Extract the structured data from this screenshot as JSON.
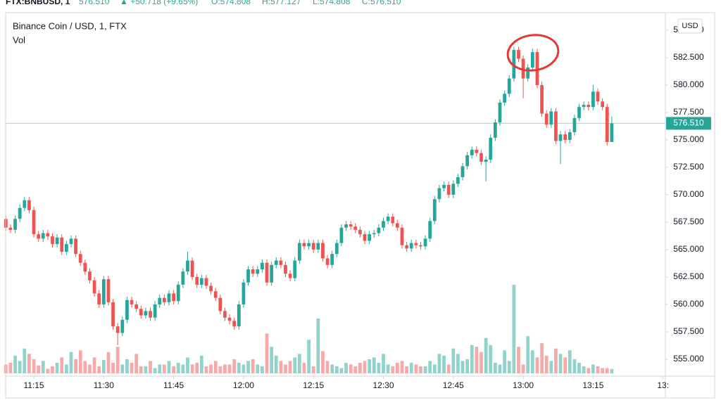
{
  "chart_data": {
    "type": "candlestick",
    "header": {
      "symbol": "FTX:BNBUSD, 1",
      "price": "576.510",
      "change": "▲ +50.718 (+9.65%)",
      "open": "O:574.808",
      "high": "H:577.127",
      "low": "L:574.808",
      "close": "C:576.510"
    },
    "title": "Binance Coin / USD, 1, FTX",
    "volume_label": "Vol",
    "currency": "USD",
    "last_price": {
      "value": 576.51,
      "label": "576.510"
    },
    "up_color": "#26a69a",
    "down_color": "#ef5350",
    "xlim": [
      -0.5,
      141.5
    ],
    "xticks": [
      {
        "value": 6,
        "label": "11:15"
      },
      {
        "value": 21,
        "label": "11:30"
      },
      {
        "value": 36,
        "label": "11:45"
      },
      {
        "value": 51,
        "label": "12:00"
      },
      {
        "value": 66,
        "label": "12:15"
      },
      {
        "value": 81,
        "label": "12:30"
      },
      {
        "value": 96,
        "label": "12:45"
      },
      {
        "value": 111,
        "label": "13:00"
      },
      {
        "value": 126,
        "label": "13:15"
      },
      {
        "value": 141,
        "label": "13:"
      }
    ],
    "ylim": [
      553.46,
      586.6
    ],
    "yticks": [
      {
        "value": 555,
        "label": "555.000"
      },
      {
        "value": 557.5,
        "label": "557.500"
      },
      {
        "value": 560,
        "label": "560.000"
      },
      {
        "value": 562.5,
        "label": "562.500"
      },
      {
        "value": 565,
        "label": "565.000"
      },
      {
        "value": 567.5,
        "label": "567.500"
      },
      {
        "value": 570,
        "label": "570.000"
      },
      {
        "value": 572.5,
        "label": "572.500"
      },
      {
        "value": 575,
        "label": "575.000"
      },
      {
        "value": 577.5,
        "label": "577.500"
      },
      {
        "value": 580,
        "label": "580.000"
      },
      {
        "value": 582.5,
        "label": "582.500"
      },
      {
        "value": 585,
        "label": "585.000"
      }
    ],
    "y2lim": [
      0,
      100
    ],
    "open": [
      567.8,
      567.0,
      566.8,
      567.8,
      568.8,
      569.5,
      568.6,
      566.4,
      566.0,
      566.5,
      566.2,
      565.5,
      566.1,
      564.8,
      565.5,
      566.0,
      564.6,
      563.8,
      563.0,
      562.2,
      561.0,
      560.0,
      562.3,
      560.2,
      558.0,
      557.4,
      558.6,
      560.4,
      560.0,
      559.6,
      559.0,
      559.4,
      558.8,
      560.0,
      560.6,
      560.2,
      561.0,
      560.3,
      561.8,
      563.0,
      564.0,
      562.5,
      561.8,
      562.4,
      561.7,
      561.2,
      560.6,
      559.4,
      558.8,
      558.5,
      558.0,
      560.0,
      562.0,
      563.2,
      562.8,
      563.2,
      563.8,
      562.0,
      563.6,
      564.0,
      563.6,
      562.8,
      562.4,
      564.0,
      565.6,
      565.3,
      565.6,
      565.0,
      565.6,
      564.2,
      563.6,
      564.6,
      565.6,
      567.0,
      567.3,
      567.1,
      566.8,
      566.4,
      565.8,
      566.4,
      566.5,
      567.0,
      567.6,
      568.0,
      567.4,
      567.0,
      565.4,
      565.1,
      565.6,
      565.4,
      565.3,
      566.0,
      567.6,
      569.6,
      570.6,
      570.9,
      570.0,
      571.0,
      571.6,
      572.6,
      573.6,
      574.1,
      573.8,
      573.0,
      573.2,
      575.2,
      576.6,
      578.4,
      579.2,
      580.6,
      583.2,
      582.4,
      580.6,
      581.6,
      583.0,
      580.0,
      577.4,
      576.4,
      577.6,
      574.9,
      575.5,
      575.0,
      575.7,
      577.0,
      578.0,
      578.2,
      578.0,
      579.4,
      578.5,
      578.0,
      574.808
    ],
    "high": [
      568.1,
      567.3,
      568.1,
      569.1,
      569.8,
      569.8,
      568.9,
      566.7,
      566.8,
      566.8,
      566.5,
      566.4,
      566.4,
      565.8,
      566.3,
      566.3,
      564.9,
      564.1,
      563.3,
      562.5,
      561.3,
      562.6,
      562.6,
      560.5,
      558.3,
      558.9,
      560.7,
      560.7,
      560.3,
      559.9,
      559.7,
      559.7,
      560.3,
      560.9,
      560.9,
      561.3,
      561.3,
      562.1,
      563.3,
      564.8,
      564.3,
      562.8,
      562.7,
      562.7,
      562.0,
      561.5,
      560.9,
      559.7,
      559.1,
      558.8,
      560.3,
      562.3,
      563.5,
      563.5,
      563.5,
      564.1,
      564.1,
      563.9,
      564.3,
      564.3,
      563.9,
      563.1,
      564.3,
      565.9,
      565.9,
      565.9,
      565.9,
      565.9,
      565.9,
      564.5,
      564.9,
      565.9,
      567.3,
      567.6,
      567.6,
      567.4,
      567.1,
      566.7,
      566.7,
      566.8,
      567.3,
      567.9,
      568.3,
      568.3,
      567.7,
      567.3,
      565.7,
      565.9,
      565.9,
      565.7,
      566.3,
      567.9,
      569.9,
      570.9,
      571.2,
      571.2,
      571.3,
      571.9,
      572.9,
      573.9,
      574.4,
      574.4,
      574.1,
      573.5,
      575.5,
      576.9,
      578.7,
      579.5,
      580.9,
      583.5,
      583.5,
      582.7,
      581.9,
      583.3,
      583.3,
      580.3,
      577.7,
      577.9,
      577.9,
      575.8,
      575.8,
      576.0,
      577.3,
      578.3,
      578.5,
      578.5,
      580.0,
      579.7,
      578.8,
      578.3,
      577.127
    ],
    "low": [
      566.7,
      566.5,
      566.5,
      567.5,
      568.5,
      568.3,
      566.1,
      565.7,
      565.7,
      565.9,
      565.2,
      565.2,
      564.5,
      564.5,
      565.2,
      564.3,
      563.5,
      562.7,
      561.9,
      560.7,
      559.7,
      559.7,
      559.9,
      557.7,
      556.3,
      557.1,
      558.3,
      559.7,
      559.3,
      558.7,
      558.7,
      558.5,
      558.5,
      559.7,
      559.9,
      559.9,
      560.0,
      560.0,
      561.5,
      562.7,
      562.2,
      561.5,
      561.5,
      561.4,
      560.9,
      560.3,
      559.1,
      558.5,
      558.2,
      557.7,
      557.7,
      559.7,
      561.7,
      562.5,
      562.5,
      562.9,
      561.7,
      561.7,
      563.3,
      563.3,
      562.5,
      562.1,
      562.1,
      563.7,
      565.0,
      565.0,
      564.7,
      564.7,
      563.9,
      563.3,
      563.3,
      564.3,
      565.3,
      566.7,
      566.8,
      566.5,
      566.1,
      565.5,
      565.5,
      566.1,
      566.2,
      566.7,
      567.3,
      567.1,
      566.7,
      565.1,
      564.8,
      564.8,
      565.1,
      565.0,
      565.0,
      565.7,
      567.3,
      569.3,
      570.3,
      569.7,
      569.7,
      570.7,
      571.3,
      572.3,
      573.3,
      573.5,
      572.7,
      571.2,
      572.9,
      574.9,
      576.3,
      578.1,
      578.9,
      580.3,
      582.1,
      578.8,
      580.3,
      581.3,
      579.7,
      577.1,
      576.1,
      576.1,
      574.6,
      572.8,
      574.7,
      574.7,
      575.4,
      576.7,
      577.7,
      577.7,
      577.7,
      578.2,
      577.7,
      574.5,
      574.808
    ],
    "close": [
      567.0,
      566.8,
      567.8,
      568.8,
      569.5,
      568.6,
      566.4,
      566.0,
      566.5,
      566.2,
      565.5,
      566.1,
      564.8,
      565.5,
      566.0,
      564.6,
      563.8,
      563.0,
      562.2,
      561.0,
      560.0,
      562.3,
      560.2,
      558.0,
      557.4,
      558.6,
      560.4,
      560.0,
      559.6,
      559.0,
      559.4,
      558.8,
      560.0,
      560.6,
      560.2,
      561.0,
      560.3,
      561.8,
      563.0,
      564.0,
      562.5,
      561.8,
      562.4,
      561.7,
      561.2,
      560.6,
      559.4,
      558.8,
      558.5,
      558.0,
      560.0,
      562.0,
      563.2,
      562.8,
      563.2,
      563.8,
      562.0,
      563.6,
      564.0,
      563.6,
      562.8,
      562.4,
      564.0,
      565.6,
      565.3,
      565.6,
      565.0,
      565.6,
      564.2,
      563.6,
      564.6,
      565.6,
      567.0,
      567.3,
      567.1,
      566.8,
      566.4,
      565.8,
      566.4,
      566.5,
      567.0,
      567.6,
      568.0,
      567.4,
      567.0,
      565.4,
      565.1,
      565.6,
      565.4,
      565.3,
      566.0,
      567.6,
      569.6,
      570.6,
      570.9,
      570.0,
      571.0,
      571.6,
      572.6,
      573.6,
      574.1,
      573.8,
      573.0,
      573.2,
      575.2,
      576.6,
      578.4,
      579.2,
      580.6,
      583.2,
      582.4,
      580.6,
      581.6,
      583.0,
      580.0,
      577.4,
      576.4,
      577.6,
      574.9,
      575.5,
      575.0,
      575.7,
      577.0,
      578.0,
      578.2,
      578.0,
      579.4,
      578.5,
      578.0,
      574.808,
      576.51
    ],
    "volume": [
      10,
      12,
      20,
      14,
      28,
      22,
      16,
      9,
      14,
      5,
      8,
      12,
      18,
      10,
      24,
      16,
      26,
      14,
      10,
      18,
      8,
      15,
      24,
      12,
      30,
      10,
      16,
      12,
      22,
      8,
      8,
      14,
      6,
      10,
      10,
      14,
      8,
      12,
      10,
      18,
      10,
      12,
      20,
      8,
      10,
      14,
      8,
      10,
      10,
      16,
      12,
      10,
      14,
      16,
      10,
      8,
      45,
      30,
      20,
      14,
      10,
      14,
      18,
      22,
      12,
      38,
      8,
      62,
      25,
      14,
      10,
      8,
      6,
      12,
      10,
      8,
      12,
      14,
      16,
      18,
      12,
      22,
      10,
      8,
      12,
      14,
      8,
      12,
      10,
      8,
      8,
      14,
      10,
      22,
      20,
      10,
      28,
      22,
      14,
      16,
      32,
      30,
      24,
      40,
      32,
      12,
      10,
      26,
      14,
      100,
      30,
      10,
      42,
      26,
      18,
      34,
      20,
      14,
      28,
      22,
      18,
      26,
      16,
      12,
      8,
      6,
      10,
      8,
      6,
      6,
      5
    ]
  }
}
